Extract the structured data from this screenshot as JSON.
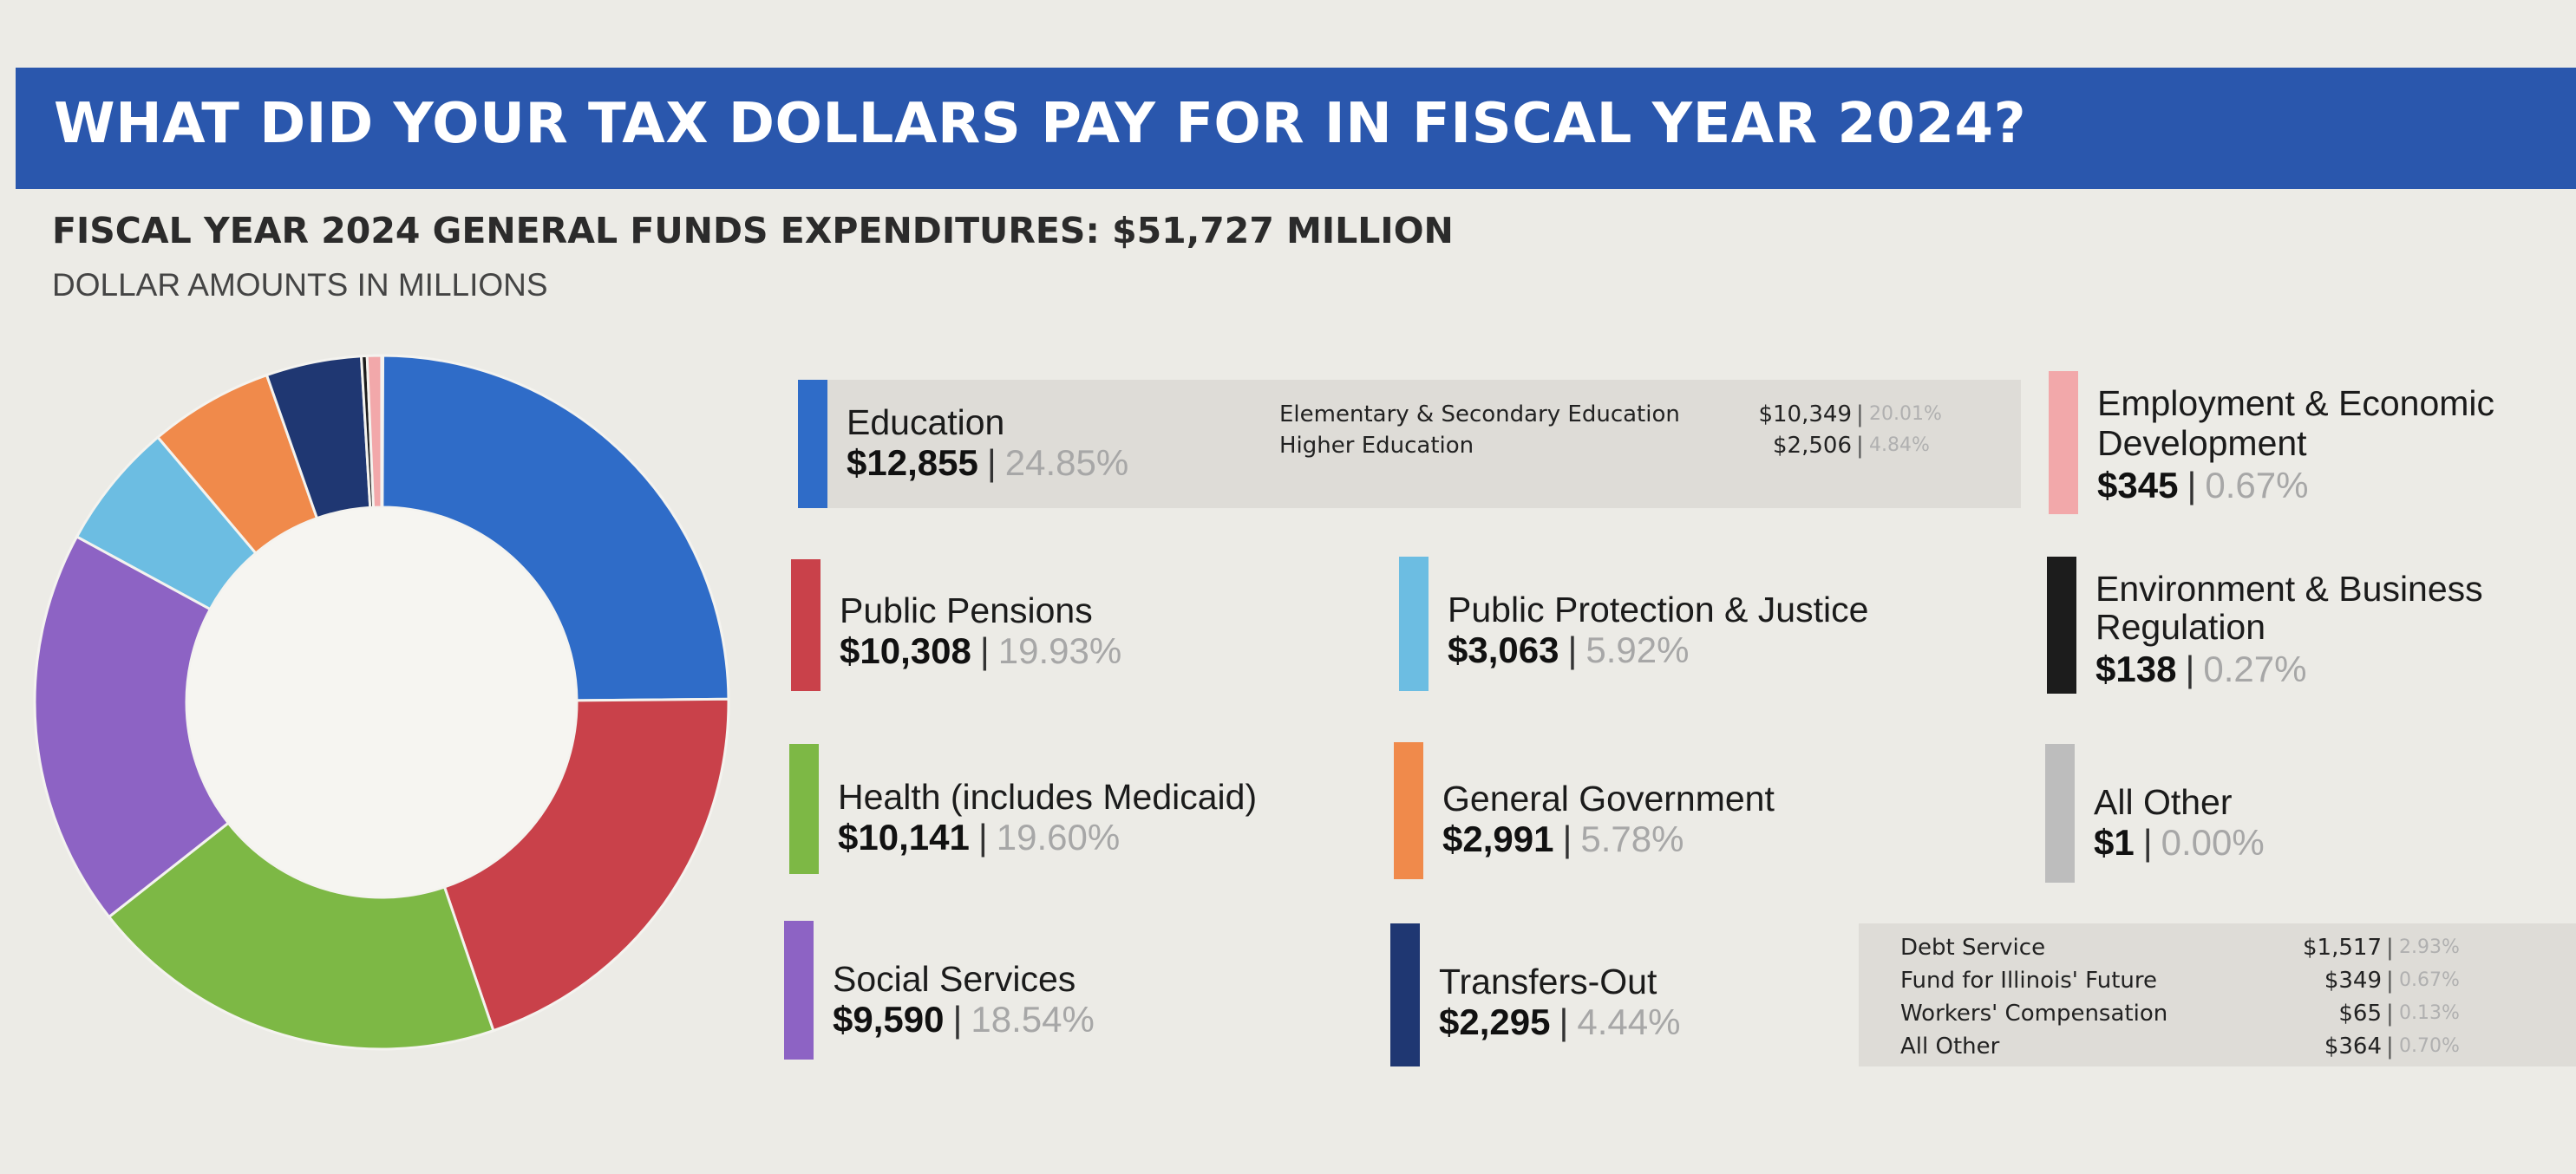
{
  "header": {
    "title": "WHAT DID YOUR TAX DOLLARS PAY FOR IN FISCAL YEAR 2024?",
    "subtitle": "FISCAL YEAR 2024 GENERAL FUNDS EXPENDITURES: $51,727 MILLION",
    "units": "DOLLAR AMOUNTS IN MILLIONS"
  },
  "colors": {
    "banner": "#2a57ad",
    "education": "#2f6cc8",
    "public_pensions": "#c9414a",
    "health": "#7db845",
    "social_services": "#8d63c4",
    "public_protection": "#6cbde2",
    "general_government": "#f08a4b",
    "transfers_out": "#1f3772",
    "employment": "#f2a8aa",
    "environment": "#1c1c1c",
    "all_other": "#bdbdbd"
  },
  "chart_data": {
    "type": "pie",
    "donut": true,
    "total": 51727,
    "unit": "millions of dollars",
    "slices": [
      {
        "name": "Education",
        "value": 12855,
        "percent": "24.85%",
        "color": "#2f6cc8"
      },
      {
        "name": "Public Pensions",
        "value": 10308,
        "percent": "19.93%",
        "color": "#c9414a"
      },
      {
        "name": "Health (includes Medicaid)",
        "value": 10141,
        "percent": "19.60%",
        "color": "#7db845"
      },
      {
        "name": "Social Services",
        "value": 9590,
        "percent": "18.54%",
        "color": "#8d63c4"
      },
      {
        "name": "Public Protection & Justice",
        "value": 3063,
        "percent": "5.92%",
        "color": "#6cbde2"
      },
      {
        "name": "General Government",
        "value": 2991,
        "percent": "5.78%",
        "color": "#f08a4b"
      },
      {
        "name": "Transfers-Out",
        "value": 2295,
        "percent": "4.44%",
        "color": "#1f3772"
      },
      {
        "name": "Employment & Economic Development",
        "value": 345,
        "percent": "0.67%",
        "color": "#f2a8aa"
      },
      {
        "name": "Environment & Business Regulation",
        "value": 138,
        "percent": "0.27%",
        "color": "#1c1c1c"
      },
      {
        "name": "All Other",
        "value": 1,
        "percent": "0.00%",
        "color": "#bdbdbd"
      }
    ]
  },
  "legend": {
    "education": {
      "name": "Education",
      "amount": "$12,855",
      "percent": "24.85%",
      "sub": [
        {
          "name": "Elementary & Secondary Education",
          "amount": "$10,349",
          "percent": "20.01%"
        },
        {
          "name": "Higher Education",
          "amount": "$2,506",
          "percent": "4.84%"
        }
      ]
    },
    "public_pensions": {
      "name": "Public Pensions",
      "amount": "$10,308",
      "percent": "19.93%"
    },
    "health": {
      "name": "Health (includes Medicaid)",
      "amount": "$10,141",
      "percent": "19.60%"
    },
    "social_services": {
      "name": "Social Services",
      "amount": "$9,590",
      "percent": "18.54%"
    },
    "public_protection": {
      "name": "Public Protection & Justice",
      "amount": "$3,063",
      "percent": "5.92%"
    },
    "general_government": {
      "name": "General Government",
      "amount": "$2,991",
      "percent": "5.78%"
    },
    "transfers_out": {
      "name": "Transfers-Out",
      "amount": "$2,295",
      "percent": "4.44%",
      "sub": [
        {
          "name": "Debt Service",
          "amount": "$1,517",
          "percent": "2.93%"
        },
        {
          "name": "Fund for Illinois' Future",
          "amount": "$349",
          "percent": "0.67%"
        },
        {
          "name": "Workers' Compensation",
          "amount": "$65",
          "percent": "0.13%"
        },
        {
          "name": "All Other",
          "amount": "$364",
          "percent": "0.70%"
        }
      ]
    },
    "employment": {
      "name_line1": "Employment & Economic",
      "name_line2": "Development",
      "amount": "$345",
      "percent": "0.67%"
    },
    "environment": {
      "name_line1": "Environment & Business",
      "name_line2": "Regulation",
      "amount": "$138",
      "percent": "0.27%"
    },
    "all_other": {
      "name": "All Other",
      "amount": "$1",
      "percent": "0.00%"
    }
  }
}
